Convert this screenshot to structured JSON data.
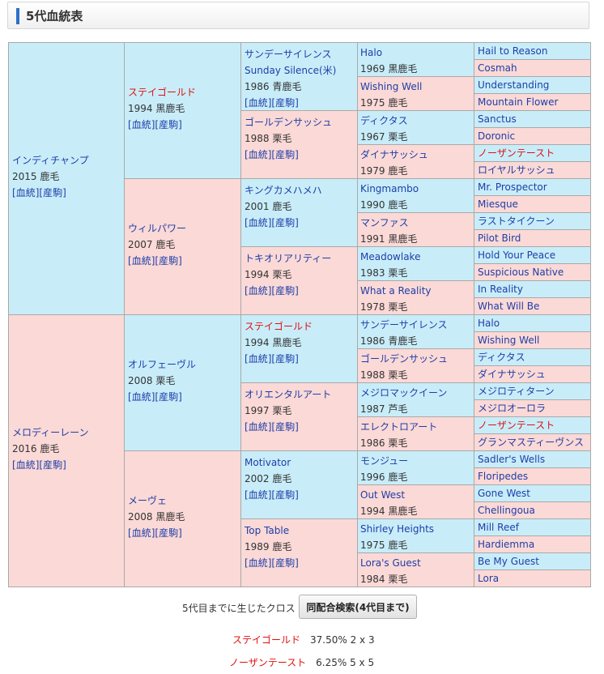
{
  "header": {
    "title": "5代血統表"
  },
  "links": {
    "blood": "血統",
    "foal": "産駒"
  },
  "gen1": [
    {
      "name": "インディチャンプ",
      "info": "2015 鹿毛"
    },
    {
      "name": "メロディーレーン",
      "info": "2016 鹿毛"
    }
  ],
  "gen2": [
    {
      "name": "ステイゴールド",
      "info": "1994 黒鹿毛",
      "red": true
    },
    {
      "name": "ウィルパワー",
      "info": "2007 鹿毛"
    },
    {
      "name": "オルフェーヴル",
      "info": "2008 栗毛"
    },
    {
      "name": "メーヴェ",
      "info": "2008 黒鹿毛"
    }
  ],
  "gen3": [
    {
      "name": "サンデーサイレンス",
      "name2": "Sunday Silence(米)",
      "info": "1986 青鹿毛"
    },
    {
      "name": "ゴールデンサッシュ",
      "info": "1988 栗毛"
    },
    {
      "name": "キングカメハメハ",
      "info": "2001 鹿毛"
    },
    {
      "name": "トキオリアリティー",
      "info": "1994 栗毛"
    },
    {
      "name": "ステイゴールド",
      "info": "1994 黒鹿毛",
      "red": true
    },
    {
      "name": "オリエンタルアート",
      "info": "1997 栗毛"
    },
    {
      "name": "Motivator",
      "info": "2002 鹿毛"
    },
    {
      "name": "Top Table",
      "info": "1989 鹿毛"
    }
  ],
  "gen4": [
    {
      "name": "Halo",
      "info": "1969 黒鹿毛"
    },
    {
      "name": "Wishing Well",
      "info": "1975 鹿毛"
    },
    {
      "name": "ディクタス",
      "info": "1967 栗毛"
    },
    {
      "name": "ダイナサッシュ",
      "info": "1979 鹿毛"
    },
    {
      "name": "Kingmambo",
      "info": "1990 鹿毛"
    },
    {
      "name": "マンファス",
      "info": "1991 黒鹿毛"
    },
    {
      "name": "Meadowlake",
      "info": "1983 栗毛"
    },
    {
      "name": "What a Reality",
      "info": "1978 栗毛"
    },
    {
      "name": "サンデーサイレンス",
      "info": "1986 青鹿毛"
    },
    {
      "name": "ゴールデンサッシュ",
      "info": "1988 栗毛"
    },
    {
      "name": "メジロマックイーン",
      "info": "1987 芦毛"
    },
    {
      "name": "エレクトロアート",
      "info": "1986 栗毛"
    },
    {
      "name": "モンジュー",
      "info": "1996 鹿毛"
    },
    {
      "name": "Out West",
      "info": "1994 黒鹿毛"
    },
    {
      "name": "Shirley Heights",
      "info": "1975 鹿毛"
    },
    {
      "name": "Lora's Guest",
      "info": "1984 栗毛"
    }
  ],
  "gen5": [
    {
      "name": "Hail to Reason"
    },
    {
      "name": "Cosmah"
    },
    {
      "name": "Understanding"
    },
    {
      "name": "Mountain Flower"
    },
    {
      "name": "Sanctus"
    },
    {
      "name": "Doronic"
    },
    {
      "name": "ノーザンテースト",
      "red": true
    },
    {
      "name": "ロイヤルサッシュ"
    },
    {
      "name": "Mr. Prospector"
    },
    {
      "name": "Miesque"
    },
    {
      "name": "ラストタイクーン"
    },
    {
      "name": "Pilot Bird"
    },
    {
      "name": "Hold Your Peace"
    },
    {
      "name": "Suspicious Native"
    },
    {
      "name": "In Reality"
    },
    {
      "name": "What Will Be"
    },
    {
      "name": "Halo"
    },
    {
      "name": "Wishing Well"
    },
    {
      "name": "ディクタス"
    },
    {
      "name": "ダイナサッシュ"
    },
    {
      "name": "メジロティターン"
    },
    {
      "name": "メジロオーロラ"
    },
    {
      "name": "ノーザンテースト",
      "red": true
    },
    {
      "name": "グランマスティーヴンス"
    },
    {
      "name": "Sadler's Wells"
    },
    {
      "name": "Floripedes"
    },
    {
      "name": "Gone West"
    },
    {
      "name": "Chellingoua"
    },
    {
      "name": "Mill Reef"
    },
    {
      "name": "Hardiemma"
    },
    {
      "name": "Be My Guest"
    },
    {
      "name": "Lora"
    }
  ],
  "cross": {
    "label": "5代目までに生じたクロス",
    "button": "同配合検索(4代目まで)",
    "items": [
      {
        "name": "ステイゴールド",
        "value": "37.50%  2 x 3"
      },
      {
        "name": "ノーザンテースト",
        "value": "6.25%  5 x 5"
      }
    ]
  }
}
